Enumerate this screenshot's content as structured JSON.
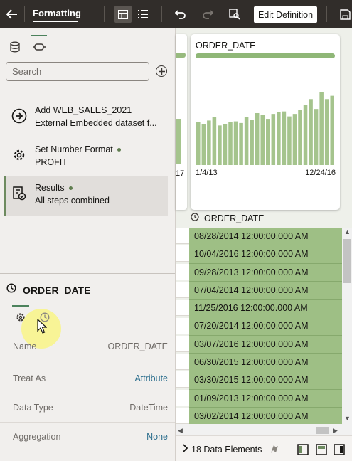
{
  "toolbar": {
    "title": "Formatting",
    "edit_definition_label": "Edit Definition"
  },
  "left_panel": {
    "search_placeholder": "Search",
    "steps": [
      {
        "title": "Add WEB_SALES_2021",
        "subtitle": "External Embedded dataset f...",
        "has_dot": false
      },
      {
        "title": "Set Number Format",
        "subtitle": "PROFIT",
        "has_dot": true
      },
      {
        "title": "Results",
        "subtitle": "All steps combined",
        "has_dot": true
      }
    ],
    "column": {
      "name": "ORDER_DATE",
      "properties": [
        {
          "label": "Name",
          "value": "ORDER_DATE"
        },
        {
          "label": "Treat As",
          "value": "Attribute"
        },
        {
          "label": "Data Type",
          "value": "DateTime"
        },
        {
          "label": "Aggregation",
          "value": "None"
        }
      ]
    }
  },
  "chart_card": {
    "title": "ORDER_DATE",
    "left_stub_label": "17",
    "x_start_label": "1/4/13",
    "x_end_label": "12/24/16"
  },
  "chart_data": {
    "type": "bar",
    "title": "ORDER_DATE",
    "values": [
      52,
      50,
      54,
      58,
      48,
      50,
      52,
      53,
      51,
      58,
      55,
      63,
      61,
      56,
      62,
      64,
      65,
      59,
      62,
      67,
      73,
      80,
      68,
      88,
      80,
      84
    ],
    "x_tick_labels": [
      "1/4/13",
      "12/24/16"
    ],
    "colors": {
      "bar": "#a5c48d"
    }
  },
  "grid": {
    "column_header": "ORDER_DATE",
    "rows": [
      "08/28/2014 12:00:00.000 AM",
      "10/04/2016 12:00:00.000 AM",
      "09/28/2013 12:00:00.000 AM",
      "07/04/2014 12:00:00.000 AM",
      "11/25/2016 12:00:00.000 AM",
      "07/20/2014 12:00:00.000 AM",
      "03/07/2016 12:00:00.000 AM",
      "06/30/2015 12:00:00.000 AM",
      "03/30/2015 12:00:00.000 AM",
      "01/09/2013 12:00:00.000 AM",
      "03/02/2014 12:00:00.000 AM"
    ]
  },
  "status_bar": {
    "elements_count": "18 Data Elements"
  },
  "colors": {
    "toolbar_bg": "#312d2a",
    "accent_green": "#4c825c",
    "selected_column": "#9ebf85",
    "link": "#2d6f8e"
  }
}
